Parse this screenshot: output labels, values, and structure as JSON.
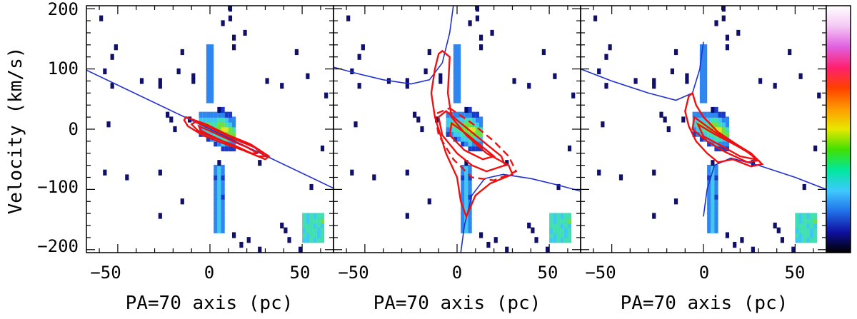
{
  "chart_data": [
    {
      "type": "heatmap",
      "panel": "left",
      "xlabel": "PA=70 axis (pc)",
      "ylabel": "Velocity (km/s)",
      "xlim": [
        -67,
        67
      ],
      "ylim": [
        -205,
        205
      ],
      "xticks": [
        -50,
        0,
        50
      ],
      "yticks": [
        200,
        100,
        0,
        -100,
        -200
      ],
      "curve": {
        "kind": "line",
        "points": [
          [
            -67,
            98
          ],
          [
            67,
            -98
          ]
        ]
      },
      "contours": [
        [
          [
            -13,
            20
          ],
          [
            -2,
            8
          ],
          [
            10,
            -10
          ],
          [
            22,
            -25
          ],
          [
            32,
            -45
          ],
          [
            30,
            -50
          ],
          [
            18,
            -35
          ],
          [
            6,
            -22
          ],
          [
            -4,
            -10
          ],
          [
            -12,
            5
          ],
          [
            -14,
            15
          ]
        ],
        [
          [
            -8,
            12
          ],
          [
            0,
            3
          ],
          [
            12,
            -15
          ],
          [
            24,
            -30
          ],
          [
            30,
            -45
          ],
          [
            26,
            -45
          ],
          [
            14,
            -28
          ],
          [
            2,
            -14
          ],
          [
            -6,
            -4
          ],
          [
            -10,
            8
          ]
        ],
        [
          [
            -6,
            5
          ],
          [
            0,
            -3
          ],
          [
            10,
            -17
          ],
          [
            20,
            -30
          ],
          [
            26,
            -40
          ],
          [
            22,
            -40
          ],
          [
            10,
            -24
          ],
          [
            0,
            -10
          ],
          [
            -5,
            -2
          ]
        ]
      ]
    },
    {
      "type": "heatmap",
      "panel": "middle",
      "xlabel": "PA=70 axis (pc)",
      "xlim": [
        -67,
        67
      ],
      "ylim": [
        -205,
        205
      ],
      "xticks": [
        -50,
        0,
        50
      ],
      "curve": {
        "kind": "twocurve",
        "upper": [
          [
            -67,
            103
          ],
          [
            -55,
            93
          ],
          [
            -40,
            82
          ],
          [
            -25,
            75
          ],
          [
            -15,
            82
          ],
          [
            -8,
            110
          ],
          [
            -4,
            160
          ],
          [
            -2,
            205
          ]
        ],
        "lower": [
          [
            2,
            -205
          ],
          [
            4,
            -160
          ],
          [
            8,
            -110
          ],
          [
            15,
            -82
          ],
          [
            25,
            -75
          ],
          [
            40,
            -82
          ],
          [
            55,
            -93
          ],
          [
            67,
            -103
          ]
        ]
      },
      "contours": [
        [
          [
            -8,
            130
          ],
          [
            -4,
            120
          ],
          [
            -5,
            60
          ],
          [
            -3,
            20
          ],
          [
            5,
            -10
          ],
          [
            16,
            -40
          ],
          [
            28,
            -60
          ],
          [
            30,
            -75
          ],
          [
            18,
            -90
          ],
          [
            10,
            -110
          ],
          [
            5,
            -145
          ],
          [
            2,
            -120
          ],
          [
            0,
            -80
          ],
          [
            -6,
            -40
          ],
          [
            -12,
            20
          ],
          [
            -14,
            60
          ],
          [
            -12,
            100
          ],
          [
            -10,
            125
          ]
        ],
        [
          [
            -6,
            30
          ],
          [
            4,
            5
          ],
          [
            14,
            -20
          ],
          [
            24,
            -45
          ],
          [
            26,
            -60
          ],
          [
            16,
            -70
          ],
          [
            8,
            -60
          ],
          [
            0,
            -40
          ],
          [
            -8,
            -10
          ],
          [
            -10,
            20
          ]
        ],
        [
          [
            -3,
            10
          ],
          [
            6,
            -10
          ],
          [
            14,
            -30
          ],
          [
            20,
            -45
          ],
          [
            14,
            -50
          ],
          [
            4,
            -35
          ],
          [
            -4,
            -10
          ]
        ],
        [
          [
            -4,
            35
          ],
          [
            8,
            10
          ],
          [
            20,
            -20
          ],
          [
            28,
            -45
          ],
          [
            32,
            -70
          ],
          [
            20,
            -85
          ],
          [
            8,
            -80
          ],
          [
            -2,
            -50
          ],
          [
            -10,
            -10
          ],
          [
            -12,
            25
          ]
        ]
      ]
    },
    {
      "type": "heatmap",
      "panel": "right",
      "xlabel": "PA=70 axis (pc)",
      "xlim": [
        -67,
        67
      ],
      "ylim": [
        -205,
        205
      ],
      "xticks": [
        -50,
        0,
        50
      ],
      "curve": {
        "kind": "twocurve",
        "upper": [
          [
            -67,
            100
          ],
          [
            -50,
            80
          ],
          [
            -30,
            60
          ],
          [
            -15,
            48
          ],
          [
            -6,
            60
          ],
          [
            -2,
            100
          ],
          [
            0,
            145
          ]
        ],
        "lower": [
          [
            0,
            -145
          ],
          [
            2,
            -100
          ],
          [
            6,
            -60
          ],
          [
            15,
            -48
          ],
          [
            30,
            -60
          ],
          [
            50,
            -80
          ],
          [
            67,
            -100
          ]
        ]
      },
      "contours": [
        [
          [
            -6,
            60
          ],
          [
            -4,
            40
          ],
          [
            0,
            20
          ],
          [
            8,
            -5
          ],
          [
            18,
            -25
          ],
          [
            26,
            -40
          ],
          [
            32,
            -58
          ],
          [
            26,
            -62
          ],
          [
            16,
            -50
          ],
          [
            8,
            -55
          ],
          [
            2,
            -40
          ],
          [
            -4,
            -20
          ],
          [
            -8,
            5
          ],
          [
            -10,
            30
          ],
          [
            -8,
            55
          ]
        ],
        [
          [
            -5,
            20
          ],
          [
            4,
            0
          ],
          [
            14,
            -20
          ],
          [
            24,
            -38
          ],
          [
            30,
            -52
          ],
          [
            24,
            -55
          ],
          [
            12,
            -38
          ],
          [
            2,
            -20
          ],
          [
            -6,
            0
          ]
        ],
        [
          [
            -3,
            8
          ],
          [
            6,
            -8
          ],
          [
            16,
            -24
          ],
          [
            26,
            -40
          ],
          [
            28,
            -50
          ],
          [
            20,
            -45
          ],
          [
            10,
            -28
          ],
          [
            0,
            -12
          ]
        ]
      ]
    }
  ],
  "colorbar": {
    "stops": [
      "#ffffff",
      "#f4c8f4",
      "#e060e0",
      "#ff2070",
      "#ff4000",
      "#ff9a00",
      "#e8e800",
      "#40e000",
      "#00e8a0",
      "#40c8ff",
      "#2070e8",
      "#1010a0",
      "#000000"
    ]
  }
}
